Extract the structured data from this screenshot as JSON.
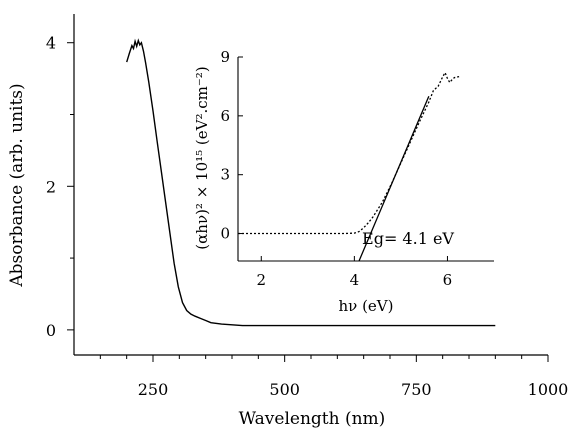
{
  "chart_data": [
    {
      "type": "line",
      "title": "",
      "xlabel": "Wavelength (nm)",
      "ylabel": "Absorbance (arb. units)",
      "xlim": [
        100,
        1000
      ],
      "ylim": [
        -0.35,
        4.4
      ],
      "xticks": [
        "250",
        "500",
        "750",
        "1000"
      ],
      "yticks": [
        "0",
        "2",
        "4"
      ],
      "grid": false,
      "series": [
        {
          "style": "solid",
          "x": [
            200,
            205,
            210,
            213,
            216,
            219,
            222,
            225,
            228,
            232,
            236,
            242,
            250,
            258,
            266,
            274,
            282,
            290,
            298,
            306,
            314,
            322,
            330,
            340,
            350,
            360,
            380,
            420,
            500,
            600,
            700,
            800,
            900
          ],
          "y": [
            3.73,
            3.85,
            3.96,
            3.92,
            4.02,
            3.95,
            4.03,
            3.97,
            4.0,
            3.88,
            3.72,
            3.45,
            3.05,
            2.62,
            2.2,
            1.78,
            1.35,
            0.93,
            0.6,
            0.38,
            0.27,
            0.22,
            0.19,
            0.16,
            0.13,
            0.1,
            0.08,
            0.06,
            0.06,
            0.06,
            0.06,
            0.06,
            0.06
          ]
        }
      ]
    },
    {
      "type": "line",
      "title": "",
      "xlabel": "hν (eV)",
      "ylabel": "(αhν)² × 10¹⁵ (eV².cm⁻²)",
      "xlim": [
        1.5,
        7.0
      ],
      "ylim": [
        -1.4,
        9.0
      ],
      "xticks": [
        "2",
        "4",
        "6"
      ],
      "yticks": [
        "0",
        "3",
        "6",
        "9"
      ],
      "grid": false,
      "annotation": "Eg= 4.1 eV",
      "series": [
        {
          "style": "dotted",
          "x": [
            1.5,
            2.0,
            3.0,
            3.8,
            4.0,
            4.1,
            4.2,
            4.3,
            4.4,
            4.6,
            4.8,
            5.0,
            5.2,
            5.4,
            5.6,
            5.7,
            5.8,
            5.9,
            5.95,
            6.0,
            6.05,
            6.1,
            6.15,
            6.25
          ],
          "y": [
            0,
            0,
            0,
            0,
            0.02,
            0.1,
            0.3,
            0.55,
            0.85,
            1.6,
            2.55,
            3.6,
            4.65,
            5.7,
            6.7,
            7.3,
            7.5,
            8.0,
            8.2,
            7.9,
            7.7,
            7.85,
            7.95,
            8.0
          ]
        },
        {
          "style": "solid",
          "x": [
            4.1,
            5.6
          ],
          "y": [
            -1.4,
            7.0
          ]
        }
      ]
    }
  ]
}
